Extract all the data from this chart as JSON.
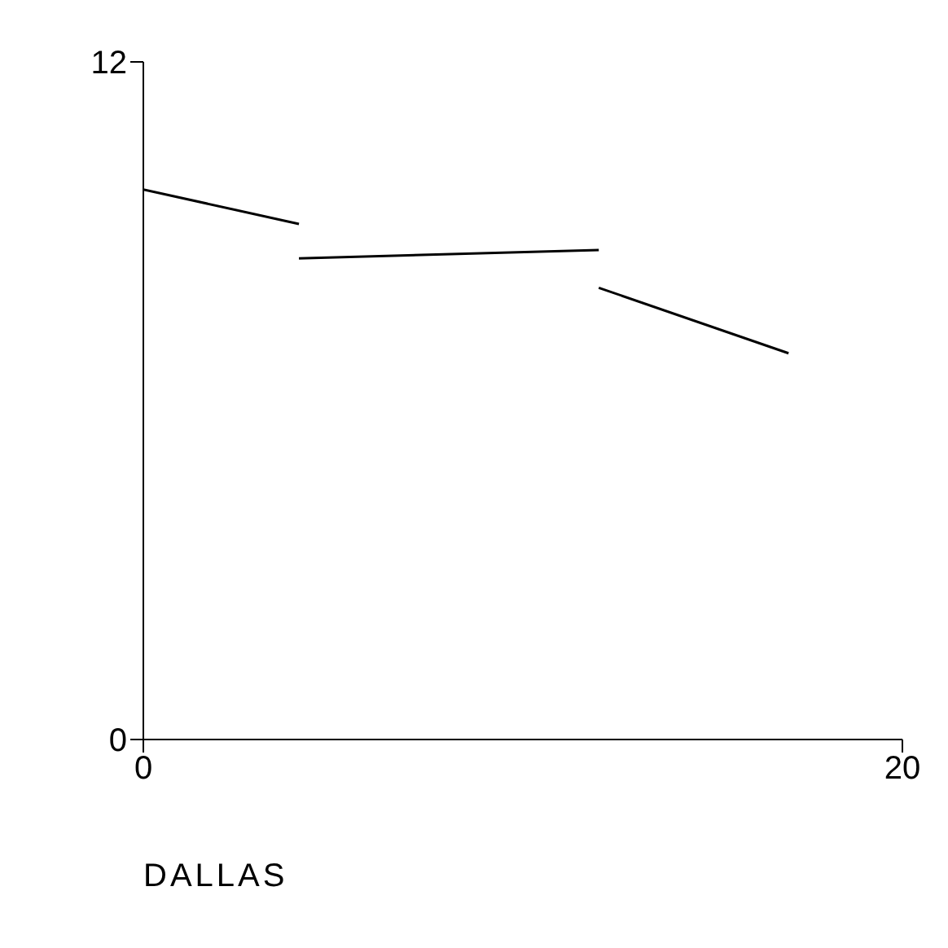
{
  "chart_data": {
    "type": "line",
    "xlabel": "DALLAS",
    "xlim": [
      0,
      20
    ],
    "ylim": [
      0,
      12
    ],
    "xticks": [
      0,
      20
    ],
    "yticks": [
      0,
      12
    ],
    "grid": false,
    "series": [
      {
        "color": "#000000",
        "x": [
          0,
          4.1
        ],
        "values": [
          9.74,
          9.13
        ]
      },
      {
        "color": "#000000",
        "x": [
          4.1,
          12
        ],
        "values": [
          8.52,
          8.67
        ]
      },
      {
        "color": "#000000",
        "x": [
          12,
          17
        ],
        "values": [
          8.0,
          6.84
        ]
      }
    ]
  }
}
